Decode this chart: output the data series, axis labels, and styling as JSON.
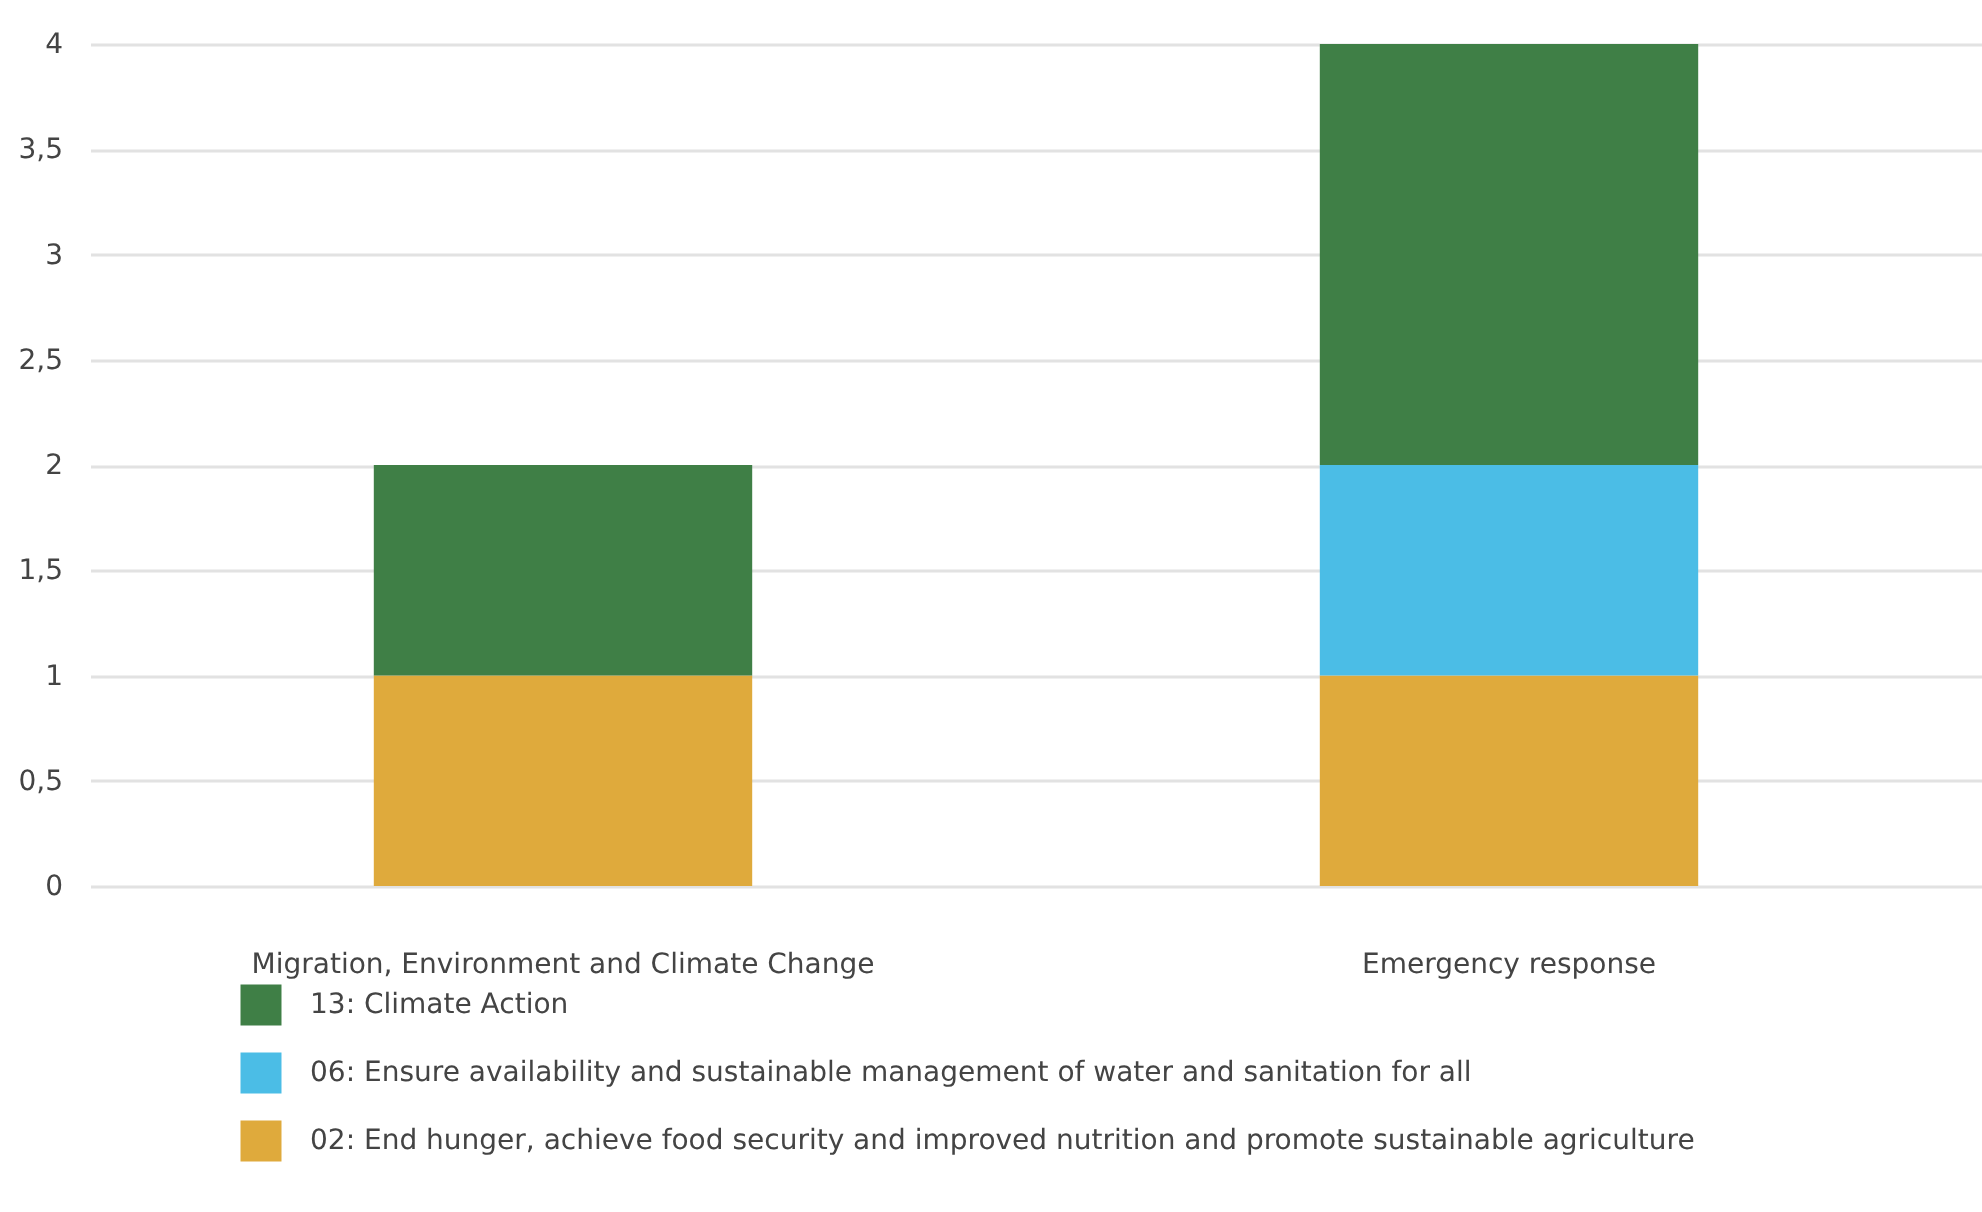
{
  "chart_data": {
    "type": "bar",
    "stacked": true,
    "categories": [
      "Migration, Environment and Climate Change",
      "Emergency response"
    ],
    "series": [
      {
        "name": "02: End hunger, achieve food security and improved nutrition and promote sustainable agriculture",
        "color": "#dfaa3c",
        "values": [
          1,
          1
        ]
      },
      {
        "name": "06: Ensure availability and sustainable management of water and sanitation for all",
        "color": "#4bbde6",
        "values": [
          null,
          1
        ]
      },
      {
        "name": "13: Climate Action",
        "color": "#3f7f46",
        "values": [
          1,
          2
        ]
      }
    ],
    "ylim": [
      0,
      4
    ],
    "yticks": [
      0,
      {
        "value": 0.5,
        "label": "0,5"
      },
      1,
      {
        "value": 1.5,
        "label": "1,5"
      },
      2,
      {
        "value": 2.5,
        "label": "2,5"
      },
      3,
      {
        "value": 3.5,
        "label": "3,5"
      },
      4
    ],
    "grid": "y",
    "legend": "bottom"
  }
}
